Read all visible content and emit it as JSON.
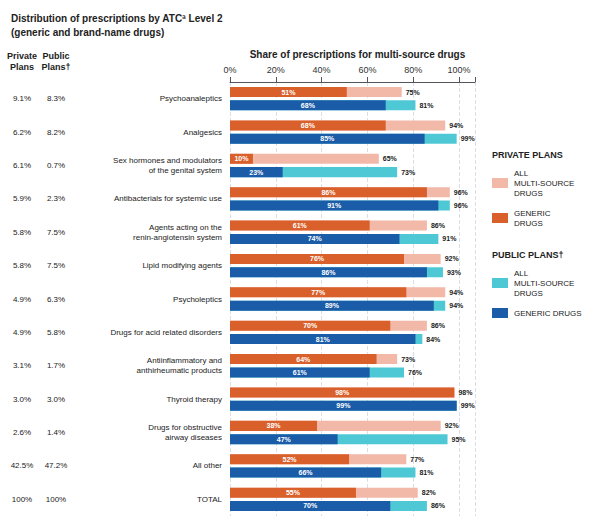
{
  "chart_data": {
    "type": "bar",
    "orientation": "horizontal",
    "title": "Distribution of prescriptions by ATCª Level 2",
    "subtitle": "(generic and brand-name drugs)",
    "xlabel": "Share of prescriptions for multi-source drugs",
    "categories": [
      "Psychoanaleptics",
      "Analgesics",
      "Sex hormones and modulators\nof the genital system",
      "Antibacterials for systemic use",
      "Agents acting on the\nrenin-angiotensin system",
      "Lipid modifying agents",
      "Psycholeptics",
      "Drugs for acid related disorders",
      "Antiinflammatory and\nanthirheumatic products",
      "Thyroid therapy",
      "Drugs for obstructive\nairway diseases",
      "All other",
      "TOTAL"
    ],
    "columns": [
      {
        "name": "Private\nPlans",
        "values": [
          9.1,
          6.2,
          6.1,
          5.9,
          5.8,
          5.8,
          4.9,
          4.9,
          3.1,
          3.0,
          2.6,
          42.5,
          100
        ],
        "value_labels": [
          "9.1%",
          "6.2%",
          "6.1%",
          "5.9%",
          "5.8%",
          "5.8%",
          "4.9%",
          "4.9%",
          "3.1%",
          "3.0%",
          "2.6%",
          "42.5%",
          "100%"
        ]
      },
      {
        "name": "Public\nPlans†",
        "values": [
          8.3,
          8.2,
          0.7,
          2.3,
          7.5,
          7.5,
          6.3,
          5.8,
          1.7,
          3.0,
          1.4,
          47.2,
          100
        ],
        "value_labels": [
          "8.3%",
          "8.2%",
          "0.7%",
          "2.3%",
          "7.5%",
          "7.5%",
          "6.3%",
          "5.8%",
          "1.7%",
          "3.0%",
          "1.4%",
          "47.2%",
          "100%"
        ]
      }
    ],
    "series": [
      {
        "name": "ALL\nMULTI-SOURCE\nDRUGS",
        "group": "PRIVATE PLANS",
        "color": "#f2b9a8",
        "values": [
          75,
          94,
          65,
          96,
          86,
          92,
          94,
          86,
          73,
          98,
          92,
          77,
          82
        ],
        "value_labels": [
          "75%",
          "94%",
          "65%",
          "96%",
          "86%",
          "92%",
          "94%",
          "86%",
          "73%",
          "98%",
          "92%",
          "77%",
          "82%"
        ]
      },
      {
        "name": "GENERIC\nDRUGS",
        "group": "PRIVATE PLANS",
        "color": "#d95f2b",
        "values": [
          51,
          68,
          10,
          86,
          61,
          76,
          77,
          70,
          64,
          98,
          38,
          52,
          55
        ],
        "value_labels": [
          "51%",
          "68%",
          "10%",
          "86%",
          "61%",
          "76%",
          "77%",
          "70%",
          "64%",
          "98%",
          "38%",
          "52%",
          "55%"
        ]
      },
      {
        "name": "ALL\nMULTI-SOURCE\nDRUGS",
        "group": "PUBLIC PLANS†",
        "color": "#4ec8d4",
        "values": [
          81,
          99,
          73,
          96,
          91,
          93,
          94,
          84,
          76,
          99,
          95,
          81,
          86
        ],
        "value_labels": [
          "81%",
          "99%",
          "73%",
          "96%",
          "91%",
          "93%",
          "94%",
          "84%",
          "76%",
          "99%",
          "95%",
          "81%",
          "86%"
        ]
      },
      {
        "name": "GENERIC DRUGS",
        "group": "PUBLIC PLANS†",
        "color": "#1a5ca8",
        "values": [
          68,
          85,
          23,
          91,
          74,
          86,
          89,
          81,
          61,
          99,
          47,
          66,
          70
        ],
        "value_labels": [
          "68%",
          "85%",
          "23%",
          "91%",
          "74%",
          "86%",
          "89%",
          "81%",
          "61%",
          "99%",
          "47%",
          "66%",
          "70%"
        ]
      }
    ],
    "xlim": [
      0,
      107
    ],
    "xticks": [
      {
        "value": 0,
        "label": "0%"
      },
      {
        "value": 20,
        "label": "20%"
      },
      {
        "value": 40,
        "label": "40%"
      },
      {
        "value": 60,
        "label": "60%"
      },
      {
        "value": 80,
        "label": "80%"
      },
      {
        "value": 100,
        "label": "100%"
      }
    ],
    "grid": true,
    "data_labels": true,
    "legend": "right"
  }
}
